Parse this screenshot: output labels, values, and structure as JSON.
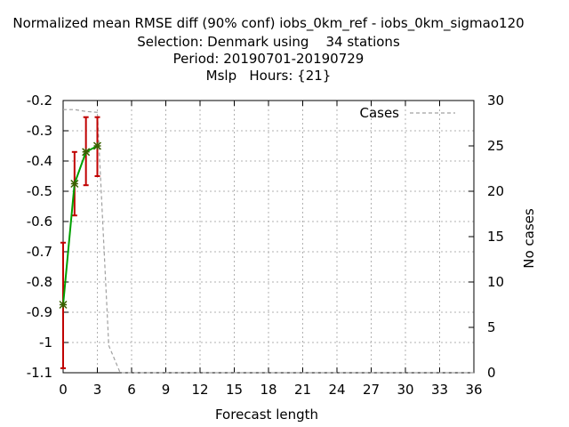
{
  "chart_data": {
    "type": "line",
    "title": [
      "Normalized mean RMSE diff (90% conf) iobs_0km_ref - iobs_0km_sigmao120",
      "Selection: Denmark using    34 stations",
      "Period: 20190701-20190729",
      "Mslp   Hours: {21}"
    ],
    "xlabel": "Forecast length",
    "ylabel": "",
    "y2label": "No cases",
    "xlim": [
      0,
      36
    ],
    "ylim": [
      -1.1,
      -0.2
    ],
    "y2lim": [
      0,
      30
    ],
    "xticks": [
      "0",
      "3",
      "6",
      "9",
      "12",
      "15",
      "18",
      "21",
      "24",
      "27",
      "30",
      "33",
      "36"
    ],
    "yticks": [
      "-0.2",
      "-0.3",
      "-0.4",
      "-0.5",
      "-0.6",
      "-0.7",
      "-0.8",
      "-0.9",
      "-1",
      "-1.1"
    ],
    "y2ticks": [
      "30",
      "25",
      "20",
      "15",
      "10",
      "5",
      "0"
    ],
    "grid": true,
    "legend": {
      "position": "top-right",
      "entries": [
        "Cases"
      ]
    },
    "series": [
      {
        "type": "line",
        "color": "#00a000",
        "x": [
          0,
          1,
          2,
          3
        ],
        "y": [
          -0.875,
          -0.475,
          -0.37,
          -0.35
        ],
        "err_low": [
          -1.085,
          -0.58,
          -0.48,
          -0.45
        ],
        "err_high": [
          -0.67,
          -0.37,
          -0.255,
          -0.255
        ],
        "err_color": "#c00000"
      },
      {
        "name": "Cases",
        "axis": "y2",
        "color": "#a0a0a0",
        "dash": true,
        "x": [
          0,
          1,
          2,
          3,
          4,
          5,
          6,
          9,
          12,
          15,
          18,
          21,
          24,
          27,
          30,
          33,
          36
        ],
        "y": [
          29,
          29,
          28.8,
          28.7,
          3,
          0,
          0,
          0,
          0,
          0,
          0,
          0,
          0,
          0,
          0,
          0,
          0
        ]
      }
    ]
  }
}
